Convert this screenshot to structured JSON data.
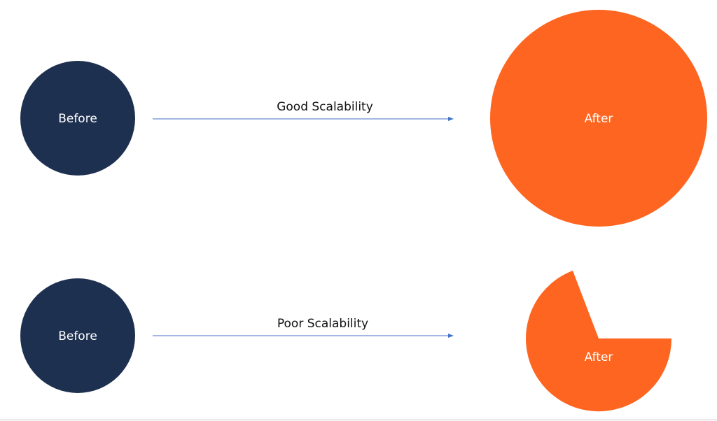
{
  "rows": [
    {
      "before": "Before",
      "arrow_label": "Good Scalability",
      "after": "After"
    },
    {
      "before": "Before",
      "arrow_label": "Poor Scalability",
      "after": "After"
    }
  ]
}
